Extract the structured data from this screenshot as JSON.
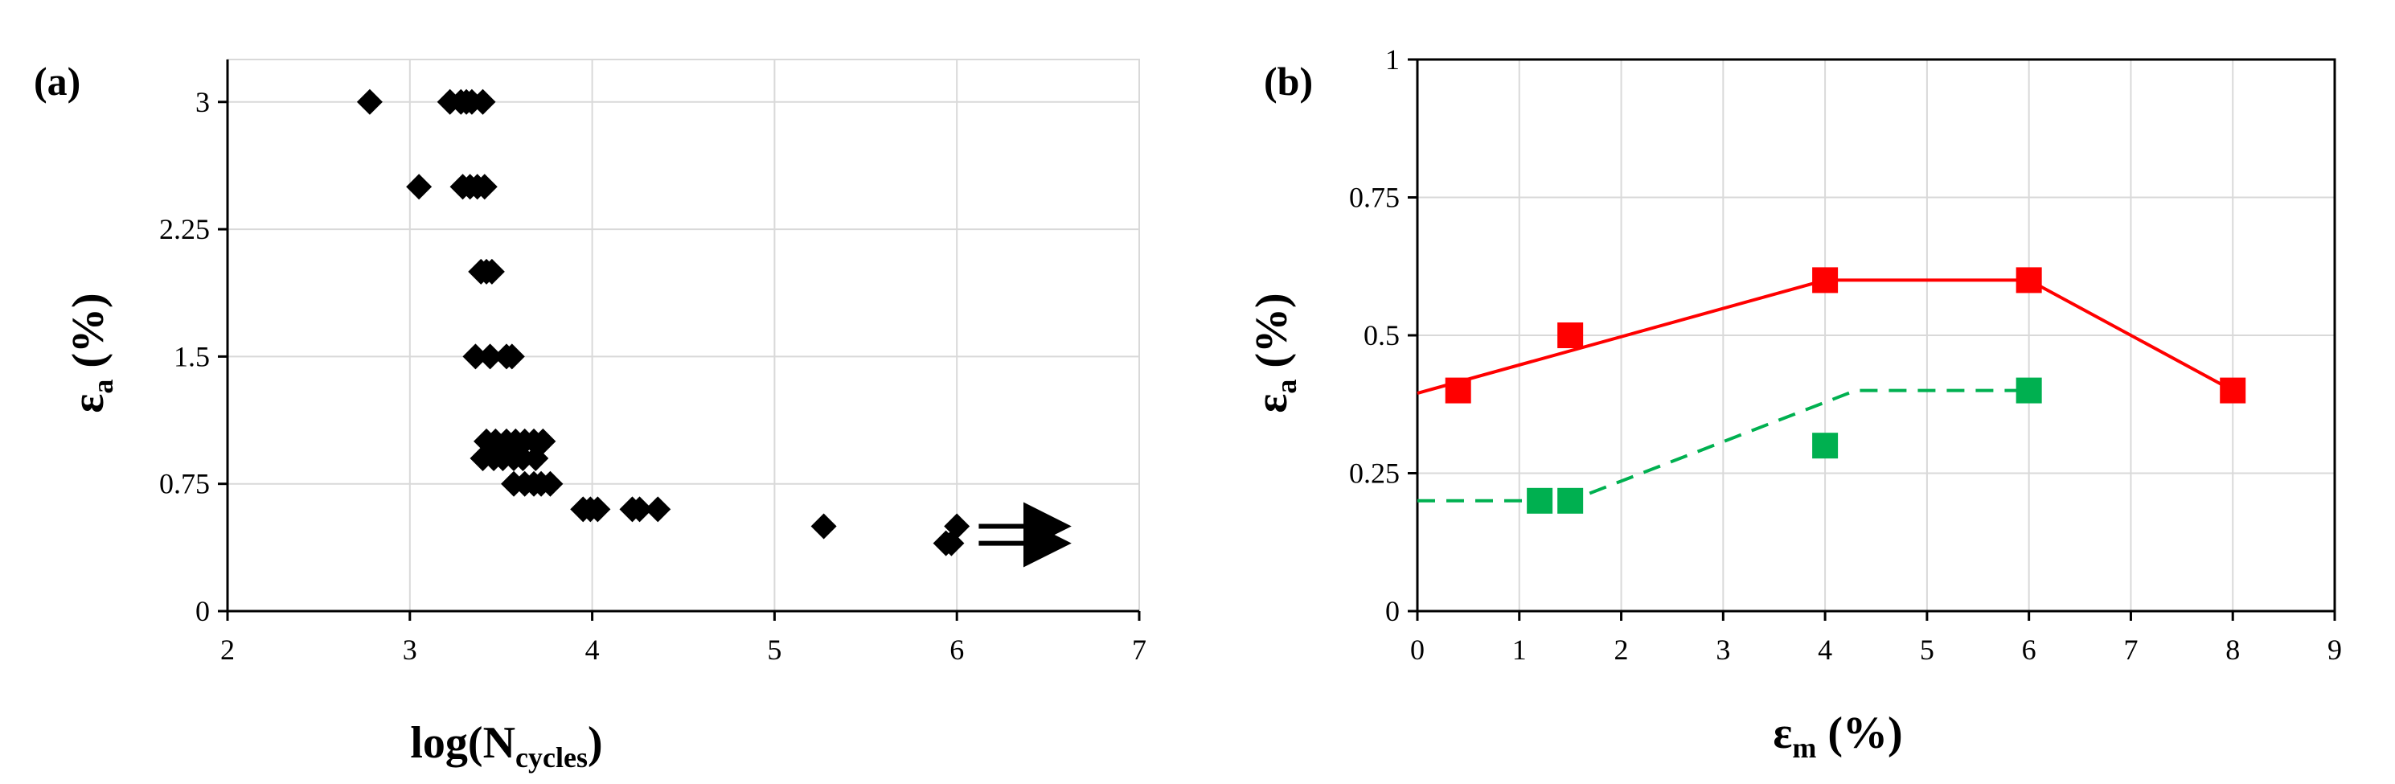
{
  "chart_data": [
    {
      "type": "scatter",
      "panel_label": "(a)",
      "xlabel": {
        "main": "log(N",
        "sub": "cycles",
        "end": ")"
      },
      "ylabel": {
        "main": "ε",
        "sub": "a",
        "end": " (%)"
      },
      "xlim": [
        2,
        7
      ],
      "ylim": [
        0,
        3.25
      ],
      "xticks": [
        2,
        3,
        4,
        5,
        6,
        7
      ],
      "yticks": [
        0,
        0.75,
        1.5,
        2.25,
        3
      ],
      "ytick_labels": [
        "0",
        "0.75",
        "1.5",
        "2.25",
        "3"
      ],
      "grid": true,
      "marker_color": "#000000",
      "series": [
        {
          "marker": "diamond",
          "points": [
            [
              2.78,
              3.0
            ],
            [
              3.22,
              3.0
            ],
            [
              3.28,
              3.0
            ],
            [
              3.31,
              3.0
            ],
            [
              3.34,
              3.0
            ],
            [
              3.4,
              3.0
            ],
            [
              3.05,
              2.5
            ],
            [
              3.29,
              2.5
            ],
            [
              3.33,
              2.5
            ],
            [
              3.37,
              2.5
            ],
            [
              3.41,
              2.5
            ],
            [
              3.39,
              2.0
            ],
            [
              3.42,
              2.0
            ],
            [
              3.45,
              2.0
            ],
            [
              3.36,
              1.5
            ],
            [
              3.44,
              1.5
            ],
            [
              3.53,
              1.5
            ],
            [
              3.56,
              1.5
            ],
            [
              3.42,
              1.0
            ],
            [
              3.47,
              1.0
            ],
            [
              3.53,
              1.0
            ],
            [
              3.58,
              1.0
            ],
            [
              3.63,
              1.0
            ],
            [
              3.68,
              1.0
            ],
            [
              3.73,
              1.0
            ],
            [
              3.4,
              0.9
            ],
            [
              3.46,
              0.9
            ],
            [
              3.51,
              0.9
            ],
            [
              3.57,
              0.9
            ],
            [
              3.62,
              0.9
            ],
            [
              3.69,
              0.9
            ],
            [
              3.57,
              0.75
            ],
            [
              3.63,
              0.75
            ],
            [
              3.68,
              0.75
            ],
            [
              3.72,
              0.75
            ],
            [
              3.77,
              0.75
            ],
            [
              3.95,
              0.6
            ],
            [
              3.99,
              0.6
            ],
            [
              4.03,
              0.6
            ],
            [
              4.22,
              0.6
            ],
            [
              4.26,
              0.6
            ],
            [
              4.36,
              0.6
            ],
            [
              5.27,
              0.5
            ],
            [
              5.94,
              0.4
            ],
            [
              5.97,
              0.4
            ],
            [
              6.0,
              0.5
            ]
          ]
        }
      ],
      "arrows": [
        {
          "from": [
            6.12,
            0.5
          ],
          "to": [
            6.62,
            0.5
          ]
        },
        {
          "from": [
            6.12,
            0.4
          ],
          "to": [
            6.62,
            0.4
          ]
        }
      ]
    },
    {
      "type": "scatter",
      "panel_label": "(b)",
      "xlabel": {
        "main": "ε",
        "sub": "m",
        "end": " (%)"
      },
      "ylabel": {
        "main": "ε",
        "sub": "a",
        "end": " (%)"
      },
      "xlim": [
        0,
        9
      ],
      "ylim": [
        0,
        1
      ],
      "xticks": [
        0,
        1,
        2,
        3,
        4,
        5,
        6,
        7,
        8,
        9
      ],
      "yticks": [
        0,
        0.25,
        0.5,
        0.75,
        1
      ],
      "ytick_labels": [
        "0",
        "0.25",
        "0.5",
        "0.75",
        "1"
      ],
      "grid": true,
      "series": [
        {
          "color": "#ff0000",
          "marker": "square",
          "points": [
            [
              0.4,
              0.4
            ],
            [
              1.5,
              0.5
            ],
            [
              4.0,
              0.6
            ],
            [
              6.0,
              0.6
            ],
            [
              8.0,
              0.4
            ]
          ],
          "line": {
            "style": "solid",
            "points": [
              [
                0,
                0.395
              ],
              [
                4.0,
                0.6
              ],
              [
                6.0,
                0.6
              ],
              [
                8.0,
                0.4
              ]
            ]
          }
        },
        {
          "color": "#00b050",
          "marker": "square",
          "points": [
            [
              1.2,
              0.2
            ],
            [
              1.5,
              0.2
            ],
            [
              4.0,
              0.3
            ],
            [
              6.0,
              0.4
            ]
          ],
          "line": {
            "style": "dashed",
            "points": [
              [
                0,
                0.2
              ],
              [
                1.5,
                0.2
              ],
              [
                4.3,
                0.4
              ],
              [
                6.0,
                0.4
              ]
            ]
          }
        }
      ]
    }
  ]
}
